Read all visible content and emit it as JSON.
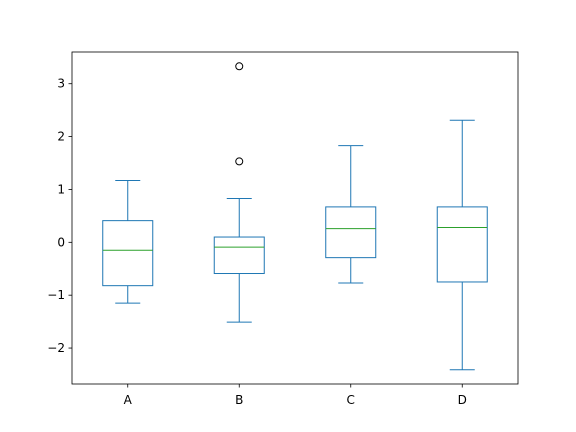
{
  "chart_data": {
    "type": "box",
    "title": "",
    "xlabel": "",
    "ylabel": "",
    "categories": [
      "A",
      "B",
      "C",
      "D"
    ],
    "ylim": [
      -2.68,
      3.6
    ],
    "yticks": [
      -2,
      -1,
      0,
      1,
      2,
      3
    ],
    "ytick_labels": [
      "−2",
      "−1",
      "0",
      "1",
      "2",
      "3"
    ],
    "grid": false,
    "boxes": [
      {
        "name": "A",
        "whisker_low": -1.15,
        "q1": -0.82,
        "median": -0.15,
        "q3": 0.41,
        "whisker_high": 1.17,
        "fliers": []
      },
      {
        "name": "B",
        "whisker_low": -1.51,
        "q1": -0.59,
        "median": -0.09,
        "q3": 0.1,
        "whisker_high": 0.83,
        "fliers": [
          1.53,
          3.33
        ]
      },
      {
        "name": "C",
        "whisker_low": -0.77,
        "q1": -0.29,
        "median": 0.26,
        "q3": 0.67,
        "whisker_high": 1.83,
        "fliers": []
      },
      {
        "name": "D",
        "whisker_low": -2.41,
        "q1": -0.75,
        "median": 0.28,
        "q3": 0.67,
        "whisker_high": 2.31,
        "fliers": []
      }
    ],
    "colors": {
      "box": "#1f77b4",
      "median": "#2ca02c",
      "flier": "#000000",
      "axes": "#000000"
    }
  }
}
